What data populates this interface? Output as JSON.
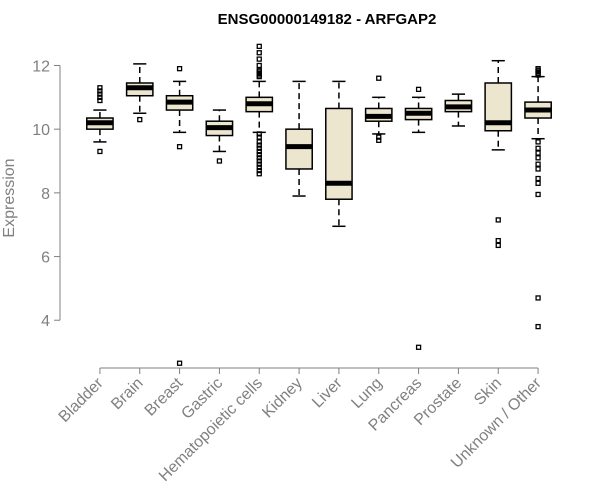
{
  "chart_data": {
    "type": "box",
    "title": "ENSG00000149182 - ARFGAP2",
    "ylabel": "Expression",
    "xlabel": "",
    "ylim": [
      2.5,
      12.8
    ],
    "yticks": [
      4,
      6,
      8,
      10,
      12
    ],
    "grid": false,
    "legend": "none",
    "box_fill": "#ede6cf",
    "categories": [
      "Bladder",
      "Brain",
      "Breast",
      "Gastric",
      "Hematopoietic cells",
      "Kidney",
      "Liver",
      "Lung",
      "Pancreas",
      "Prostate",
      "Skin",
      "Unknown / Other"
    ],
    "boxes": [
      {
        "min": 9.6,
        "q1": 10.0,
        "median": 10.2,
        "q3": 10.35,
        "max": 10.6,
        "outliers": [
          9.3,
          10.9,
          11.0,
          11.1,
          11.2,
          11.3
        ]
      },
      {
        "min": 10.5,
        "q1": 11.05,
        "median": 11.3,
        "q3": 11.45,
        "max": 12.05,
        "outliers": [
          10.3
        ]
      },
      {
        "min": 9.9,
        "q1": 10.6,
        "median": 10.85,
        "q3": 11.05,
        "max": 11.5,
        "outliers": [
          11.9,
          9.45,
          2.65
        ]
      },
      {
        "min": 9.3,
        "q1": 9.8,
        "median": 10.05,
        "q3": 10.25,
        "max": 10.6,
        "outliers": [
          9.0
        ]
      },
      {
        "min": 9.9,
        "q1": 10.55,
        "median": 10.8,
        "q3": 11.0,
        "max": 11.5,
        "outliers": [
          11.65,
          11.7,
          11.75,
          11.8,
          11.85,
          12.0,
          12.2,
          12.4,
          12.6,
          9.85,
          9.75,
          9.6,
          9.5,
          9.4,
          9.3,
          9.2,
          9.1,
          9.0,
          8.9,
          8.8,
          8.7,
          8.6
        ]
      },
      {
        "min": 7.9,
        "q1": 8.75,
        "median": 9.45,
        "q3": 10.0,
        "max": 11.5,
        "outliers": []
      },
      {
        "min": 6.95,
        "q1": 7.8,
        "median": 8.3,
        "q3": 10.65,
        "max": 11.5,
        "outliers": []
      },
      {
        "min": 9.85,
        "q1": 10.25,
        "median": 10.4,
        "q3": 10.65,
        "max": 11.0,
        "outliers": [
          11.6,
          9.75,
          9.65
        ]
      },
      {
        "min": 9.9,
        "q1": 10.3,
        "median": 10.5,
        "q3": 10.65,
        "max": 11.0,
        "outliers": [
          11.25,
          3.15
        ]
      },
      {
        "min": 10.1,
        "q1": 10.55,
        "median": 10.7,
        "q3": 10.9,
        "max": 11.1,
        "outliers": []
      },
      {
        "min": 9.35,
        "q1": 9.95,
        "median": 10.2,
        "q3": 11.45,
        "max": 12.15,
        "outliers": [
          7.15,
          6.5,
          6.35
        ]
      },
      {
        "min": 9.7,
        "q1": 10.35,
        "median": 10.6,
        "q3": 10.85,
        "max": 11.65,
        "outliers": [
          11.7,
          11.75,
          11.8,
          11.85,
          11.9,
          9.6,
          9.4,
          9.25,
          9.1,
          8.9,
          8.75,
          8.45,
          8.3,
          7.95,
          4.7,
          3.8
        ]
      }
    ]
  }
}
